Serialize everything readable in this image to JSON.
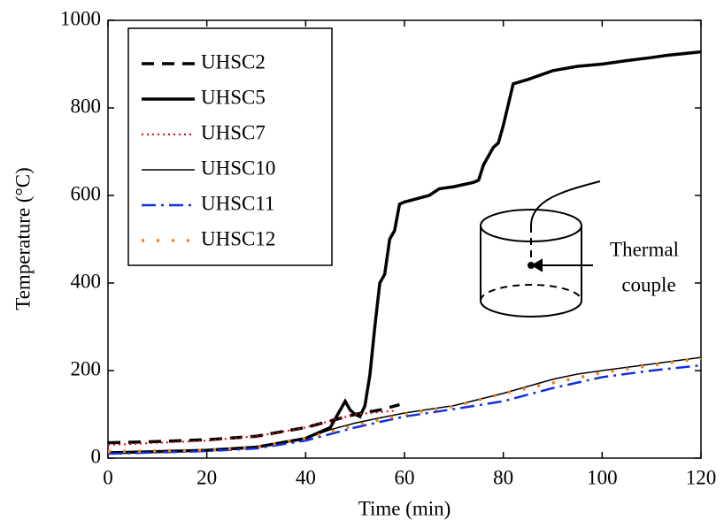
{
  "chart_data": {
    "type": "line",
    "xlabel": "Time (min)",
    "ylabel": "Temperature (°C)",
    "xlim": [
      0,
      120
    ],
    "xticks": [
      0,
      20,
      40,
      60,
      80,
      100,
      120
    ],
    "ylim": [
      0,
      1000
    ],
    "yticks": [
      0,
      200,
      400,
      600,
      800,
      1000
    ],
    "grid": false,
    "legend": "upper left",
    "annotation": [
      "Thermal",
      "couple"
    ],
    "series": [
      {
        "name": "UHSC2",
        "color": "#000000",
        "linestyle": "dashed",
        "linewidth": 3.5,
        "x": [
          0,
          10,
          20,
          30,
          40,
          45,
          50,
          55,
          59
        ],
        "values": [
          35,
          38,
          42,
          50,
          70,
          85,
          100,
          110,
          122
        ]
      },
      {
        "name": "UHSC5",
        "color": "#000000",
        "linestyle": "solid",
        "linewidth": 3.5,
        "x": [
          0,
          10,
          20,
          30,
          40,
          45,
          47,
          48,
          49,
          50,
          51,
          52,
          53,
          54,
          55,
          56,
          57,
          58,
          59,
          60,
          65,
          67,
          70,
          72,
          74,
          75,
          76,
          78,
          79,
          80,
          82,
          85,
          90,
          95,
          100,
          105,
          110,
          113,
          120
        ],
        "values": [
          12,
          15,
          18,
          25,
          45,
          70,
          110,
          130,
          110,
          100,
          95,
          120,
          190,
          300,
          400,
          420,
          500,
          520,
          580,
          585,
          600,
          615,
          620,
          625,
          630,
          635,
          670,
          710,
          720,
          760,
          855,
          865,
          885,
          895,
          900,
          908,
          915,
          920,
          928
        ]
      },
      {
        "name": "UHSC7",
        "color": "#e00000",
        "linestyle": "dotted",
        "linewidth": 2,
        "x": [
          0,
          10,
          20,
          30,
          40,
          45,
          50,
          55,
          58
        ],
        "values": [
          30,
          35,
          40,
          50,
          70,
          85,
          100,
          105,
          108
        ]
      },
      {
        "name": "UHSC10",
        "color": "#000000",
        "linestyle": "solid",
        "linewidth": 1.5,
        "x": [
          0,
          10,
          20,
          30,
          40,
          45,
          50,
          55,
          60,
          70,
          80,
          90,
          95,
          100,
          110,
          120
        ],
        "values": [
          12,
          15,
          18,
          25,
          45,
          65,
          80,
          92,
          103,
          120,
          148,
          180,
          192,
          200,
          215,
          230
        ]
      },
      {
        "name": "UHSC11",
        "color": "#1030e0",
        "linestyle": "dashdot",
        "linewidth": 2.5,
        "x": [
          0,
          20,
          30,
          40,
          50,
          60,
          70,
          80,
          90,
          100,
          110,
          120
        ],
        "values": [
          10,
          16,
          22,
          40,
          70,
          95,
          112,
          130,
          160,
          185,
          200,
          212
        ]
      },
      {
        "name": "UHSC12",
        "color": "#f08020",
        "linestyle": "dots",
        "linewidth": 3.5,
        "x": [
          0,
          20,
          30,
          40,
          50,
          60,
          70,
          80,
          90,
          100,
          110,
          120
        ],
        "values": [
          15,
          18,
          25,
          45,
          75,
          100,
          118,
          148,
          172,
          195,
          212,
          228
        ]
      }
    ]
  }
}
